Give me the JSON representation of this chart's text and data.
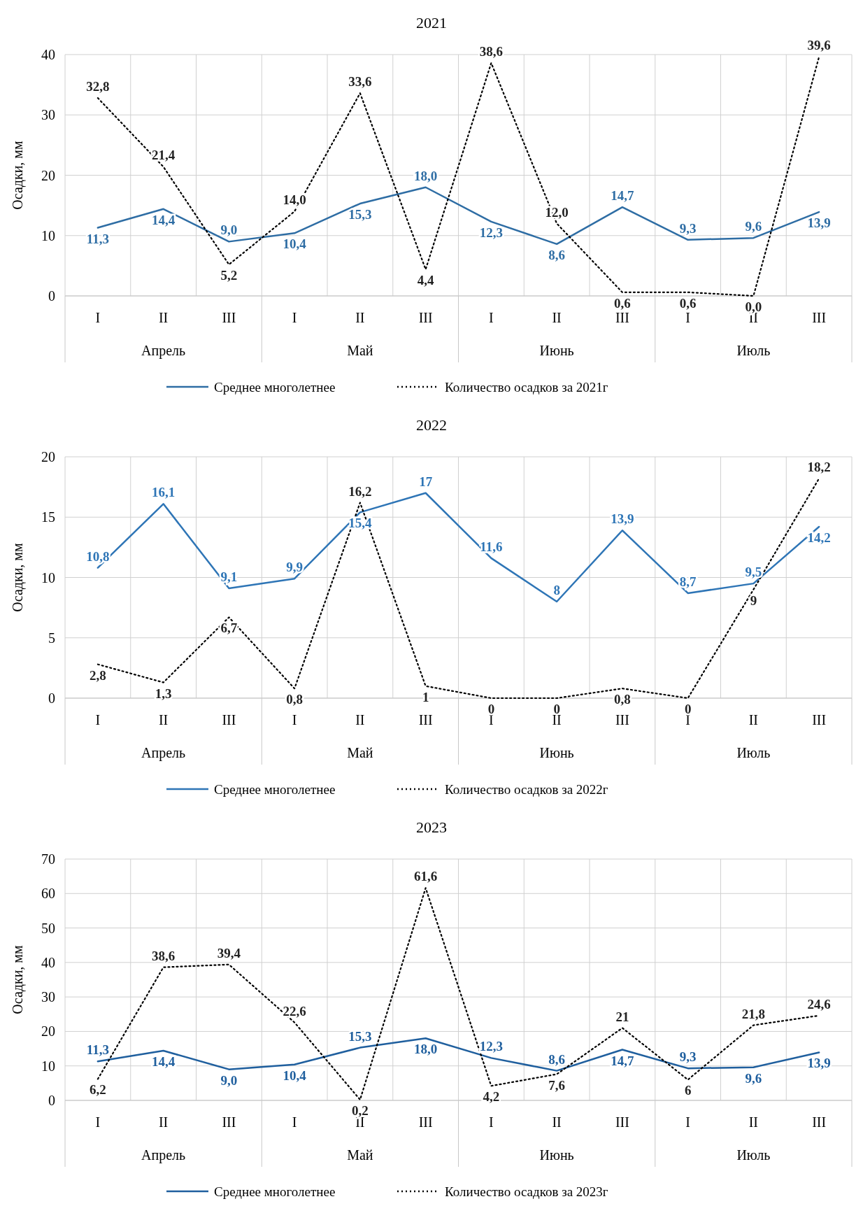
{
  "chart_data": [
    {
      "type": "line",
      "title": "2021",
      "ylabel": "Осадки, мм",
      "categories": [
        "I",
        "II",
        "III",
        "I",
        "II",
        "III",
        "I",
        "II",
        "III",
        "I",
        "II",
        "III"
      ],
      "annotations": [
        "Апрель",
        "Май",
        "Июнь",
        "Июль"
      ],
      "ylim": [
        0,
        40
      ],
      "yticks": [
        0,
        10,
        20,
        30,
        40
      ],
      "grid": true,
      "legend": "bottom",
      "marker": "none",
      "series": [
        {
          "name": "Среднее многолетнее",
          "color": "#2e6da4",
          "line_style": "solid",
          "values": [
            11.3,
            14.4,
            9.0,
            10.4,
            15.3,
            18.0,
            12.3,
            8.6,
            14.7,
            9.3,
            9.6,
            13.9
          ],
          "value_labels": [
            "11,3",
            "14,4",
            "9,0",
            "10,4",
            "15,3",
            "18,0",
            "12,3",
            "8,6",
            "14,7",
            "9,3",
            "9,6",
            "13,9"
          ]
        },
        {
          "name": "Количество осадков за 2021г",
          "color": "#000000",
          "line_style": "dotted",
          "values": [
            32.8,
            21.4,
            5.2,
            14.0,
            33.6,
            4.4,
            38.6,
            12.0,
            0.6,
            0.6,
            0.0,
            39.6
          ],
          "value_labels": [
            "32,8",
            "21,4",
            "5,2",
            "14,0",
            "33,6",
            "4,4",
            "38,6",
            "12,0",
            "0,6",
            "0,6",
            "0,0",
            "39,6"
          ]
        }
      ]
    },
    {
      "type": "line",
      "title": "2022",
      "ylabel": "Осадки, мм",
      "categories": [
        "I",
        "II",
        "III",
        "I",
        "II",
        "III",
        "I",
        "II",
        "III",
        "I",
        "II",
        "III"
      ],
      "annotations": [
        "Апрель",
        "Май",
        "Июнь",
        "Июль"
      ],
      "ylim": [
        0,
        20
      ],
      "yticks": [
        0,
        5,
        10,
        15,
        20
      ],
      "grid": true,
      "legend": "bottom",
      "marker": "none",
      "series": [
        {
          "name": "Среднее многолетнее",
          "color": "#2e75b6",
          "line_style": "solid",
          "values": [
            10.8,
            16.1,
            9.1,
            9.9,
            15.4,
            17,
            11.6,
            8,
            13.9,
            8.7,
            9.5,
            14.2
          ],
          "value_labels": [
            "10,8",
            "16,1",
            "9,1",
            "9,9",
            "15,4",
            "17",
            "11,6",
            "8",
            "13,9",
            "8,7",
            "9,5",
            "14,2"
          ]
        },
        {
          "name": "Количество осадков за 2022г",
          "color": "#000000",
          "line_style": "dotted",
          "values": [
            2.8,
            1.3,
            6.7,
            0.8,
            16.2,
            1,
            0,
            0,
            0.8,
            0,
            9,
            18.2
          ],
          "value_labels": [
            "2,8",
            "1,3",
            "6,7",
            "0,8",
            "16,2",
            "1",
            "0",
            "0",
            "0,8",
            "0",
            "9",
            "18,2"
          ]
        }
      ]
    },
    {
      "type": "line",
      "title": "2023",
      "ylabel": "Осадки, мм",
      "categories": [
        "I",
        "II",
        "III",
        "I",
        "II",
        "III",
        "I",
        "II",
        "III",
        "I",
        "II",
        "III"
      ],
      "annotations": [
        "Апрель",
        "Май",
        "Июнь",
        "Июль"
      ],
      "ylim": [
        0,
        70
      ],
      "yticks": [
        0,
        10,
        20,
        30,
        40,
        50,
        60,
        70
      ],
      "grid": true,
      "legend": "bottom",
      "marker": "none",
      "series": [
        {
          "name": "Среднее многолетнее",
          "color": "#1f5f9e",
          "line_style": "solid",
          "values": [
            11.3,
            14.4,
            9.0,
            10.4,
            15.3,
            18.0,
            12.3,
            8.6,
            14.7,
            9.3,
            9.6,
            13.9
          ],
          "value_labels": [
            "11,3",
            "14,4",
            "9,0",
            "10,4",
            "15,3",
            "18,0",
            "12,3",
            "8,6",
            "14,7",
            "9,3",
            "9,6",
            "13,9"
          ]
        },
        {
          "name": "Количество осадков за 2023г",
          "color": "#000000",
          "line_style": "dotted",
          "values": [
            6.2,
            38.6,
            39.4,
            22.6,
            0.2,
            61.6,
            4.2,
            7.6,
            21,
            6,
            21.8,
            24.6
          ],
          "value_labels": [
            "6,2",
            "38,6",
            "39,4",
            "22,6",
            "0,2",
            "61,6",
            "4,2",
            "7,6",
            "21",
            "6",
            "21,8",
            "24,6"
          ]
        }
      ]
    }
  ]
}
